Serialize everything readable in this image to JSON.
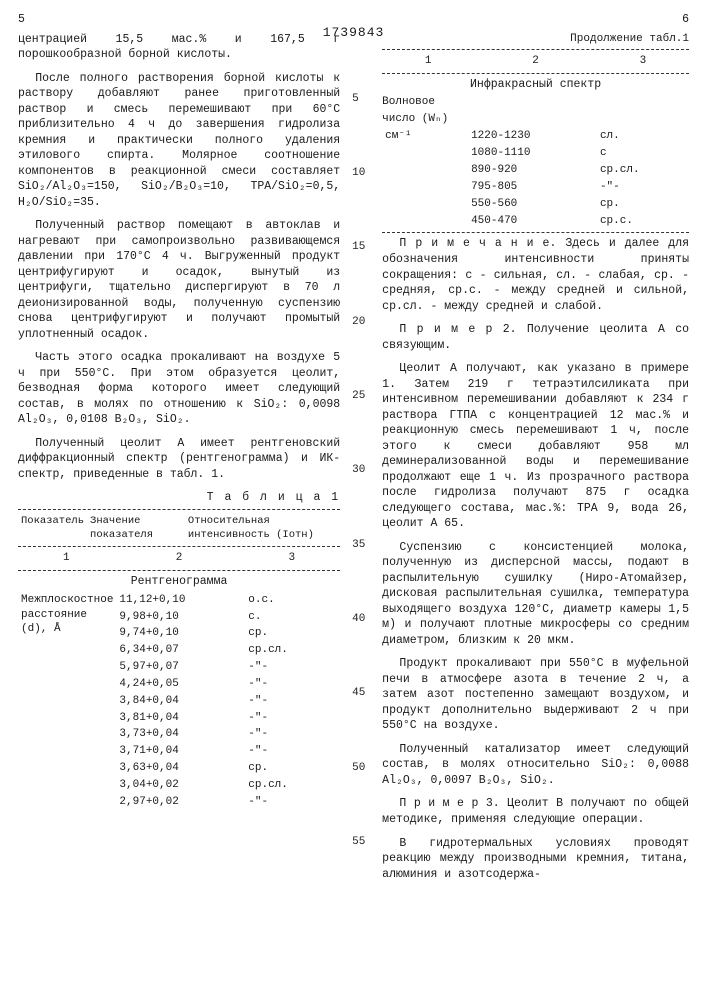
{
  "document_number": "1739843",
  "left_page_number": "5",
  "right_page_number": "6",
  "line_markers": [
    "5",
    "10",
    "15",
    "20",
    "25",
    "30",
    "35",
    "40",
    "45",
    "50",
    "55"
  ],
  "left": {
    "p1": "центрацией 15,5 мас.% и 167,5 г порошкообразной борной кислоты.",
    "p2": "После полного растворения борной кислоты к раствору добавляют ранее приготовленный раствор и смесь перемешивают при 60°С приблизительно 4 ч до завершения гидролиза кремния и практически полного удаления этилового спирта. Молярное соотношение компонентов в реакционной смеси составляет SiO₂/Al₂O₃=150, SiO₂/B₂O₃=10, TPA/SiO₂=0,5, H₂O/SiO₂=35.",
    "p3": "Полученный раствор помещают в автоклав и нагревают при самопроизвольно развивающемся давлении при 170°С 4 ч. Выгруженный продукт центрифугируют и осадок, вынутый из центрифуги, тщательно диспергируют в 70 л деионизированной воды, полученную суспензию снова центрифугируют и получают промытый уплотненный осадок.",
    "p4": "Часть этого осадка прокаливают на воздухе 5 ч при 550°С. При этом образуется цеолит, безводная форма которого имеет следующий состав, в молях по отношению к SiO₂: 0,0098 Al₂O₃, 0,0108 B₂O₃, SiO₂.",
    "p5": "Полученный цеолит А имеет рентгеновский диффракционный спектр (рентгенограмма) и ИК-спектр, приведенные в табл. 1.",
    "table_title": "Т а б л и ц а 1",
    "headers": {
      "h1": "Показатель",
      "h2": "Значение показателя",
      "h3": "Относительная интенсивность (Iотн)"
    },
    "num_row": [
      "1",
      "2",
      "3"
    ],
    "band": "Рентгенограмма",
    "row_label": "Межплоскостное расстояние (d), Å",
    "xrd_rows": [
      [
        "11,12+0,10",
        "о.с."
      ],
      [
        "9,98+0,10",
        "с."
      ],
      [
        "9,74+0,10",
        "ср."
      ],
      [
        "6,34+0,07",
        "ср.сл."
      ],
      [
        "5,97+0,07",
        "-\"-"
      ],
      [
        "4,24+0,05",
        "-\"-"
      ],
      [
        "3,84+0,04",
        "-\"-"
      ],
      [
        "3,81+0,04",
        "-\"-"
      ],
      [
        "3,73+0,04",
        "-\"-"
      ],
      [
        "3,71+0,04",
        "-\"-"
      ],
      [
        "3,63+0,04",
        "ср."
      ],
      [
        "3,04+0,02",
        "ср.сл."
      ],
      [
        "2,97+0,02",
        "-\"-"
      ]
    ]
  },
  "right": {
    "cont": "Продолжение табл.1",
    "num_row": [
      "1",
      "2",
      "3"
    ],
    "band": "Инфракрасный спектр",
    "ir_label1": "Волновое",
    "ir_label2": "число (Wₙ)",
    "ir_label3": "см⁻¹",
    "ir_rows": [
      [
        "1220-1230",
        "сл."
      ],
      [
        "1080-1110",
        "с"
      ],
      [
        "890-920",
        "ср.сл."
      ],
      [
        "795-805",
        "-\"-"
      ],
      [
        "550-560",
        "ср."
      ],
      [
        "450-470",
        "ср.с."
      ]
    ],
    "note": "П р и м е ч а н и е. Здесь и далее для обозначения интенсивности приняты сокращения: с - сильная, сл. - слабая, ср. - средняя, ср.с. - между средней и сильной, ср.сл. - между средней и слабой.",
    "p1": "П р и м е р 2. Получение цеолита А со связующим.",
    "p2": "Цеолит А получают, как указано в примере 1. Затем 219 г тетраэтилсиликата при интенсивном перемешивании добавляют к 234 г раствора ГТПА с концентрацией 12 мас.% и реакционную смесь перемешивают 1 ч, после этого к смеси добавляют 958 мл деминерализованной воды и перемешивание продолжают еще 1 ч. Из прозрачного раствора после гидролиза получают 875 г осадка следующего состава, мас.%: ТРА 9, вода 26, цеолит А 65.",
    "p3": "Суспензию с консистенцией молока, полученную из дисперсной массы, подают в распылительную сушилку (Ниро-Атомайзер, дисковая распылительная сушилка, температура выходящего воздуха 120°С, диаметр камеры 1,5 м) и получают плотные микросферы со средним диаметром, близким к 20 мкм.",
    "p4": "Продукт прокаливают при 550°С в муфельной печи в атмосфере азота в течение 2 ч, а затем азот постепенно замещают воздухом, и продукт дополнительно выдерживают 2 ч при 550°С на воздухе.",
    "p5": "Полученный катализатор имеет следующий состав, в молях относительно SiO₂: 0,0088 Al₂O₃, 0,0097 B₂O₃, SiO₂.",
    "p6": "П р и м е р 3. Цеолит В получают по общей методике, применяя следующие операции.",
    "p7": "В гидротермальных условиях проводят реакцию между производными кремния, титана, алюминия и азотсодержа-"
  }
}
